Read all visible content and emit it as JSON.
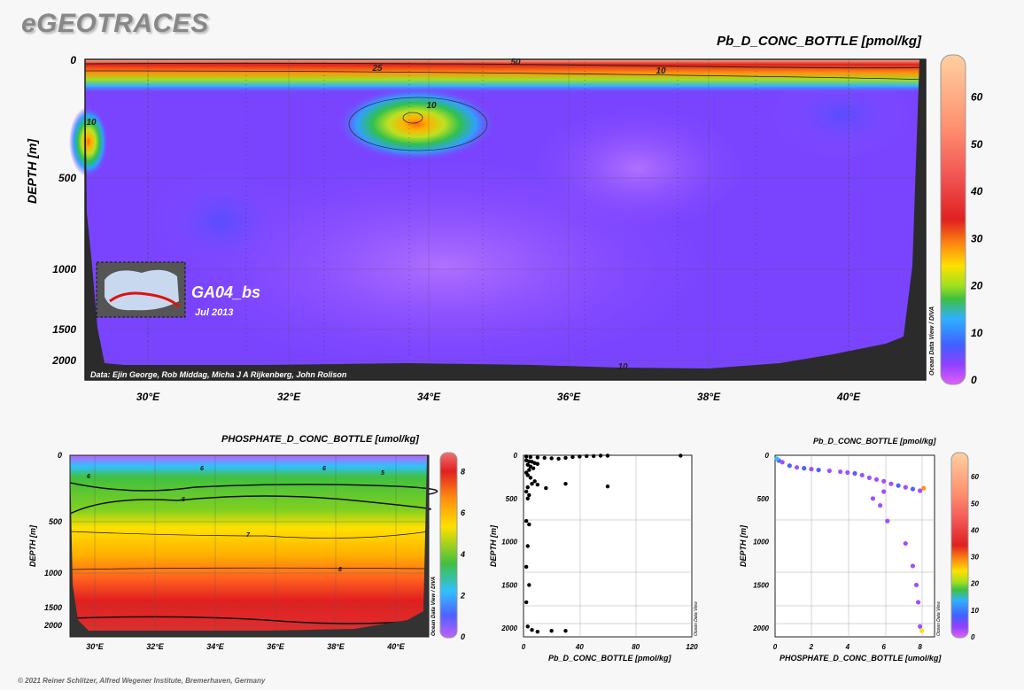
{
  "header": {
    "logo": "eGEOTRACES",
    "footer": "© 2021 Reiner Schlitzer, Alfred Wegener Institute, Bremerhaven, Germany"
  },
  "colors": {
    "palette": [
      "#e060ff",
      "#9040ff",
      "#5060ff",
      "#30a0ff",
      "#30d0c0",
      "#40c040",
      "#a0e020",
      "#ffe000",
      "#ffb000",
      "#ff6020",
      "#e02020",
      "#f06060",
      "#ffa080",
      "#ffd0a0"
    ]
  },
  "chart_data": [
    {
      "id": "main",
      "type": "heatmap",
      "title": "Pb_D_CONC_BOTTLE [pmol/kg]",
      "ylabel": "DEPTH [m]",
      "x_ticks": [
        "30°E",
        "32°E",
        "34°E",
        "36°E",
        "38°E",
        "40°E"
      ],
      "y_ticks": [
        "0",
        "500",
        "1000",
        "1500",
        "2000"
      ],
      "colorbar_ticks": [
        "0",
        "10",
        "20",
        "30",
        "40",
        "50",
        "60"
      ],
      "colorbar_range": [
        0,
        68
      ],
      "contour_labels": [
        "50",
        "25",
        "10",
        "10",
        "10",
        "10"
      ],
      "section": "GA04_bs",
      "date": "Jul 2013",
      "credit": "Data: Ejin George, Rob Middag, Micha J A Rijkenberg, John Rolison",
      "watermark": "Ocean Data View / DIVA"
    },
    {
      "id": "phosphate",
      "type": "heatmap",
      "title": "PHOSPHATE_D_CONC_BOTTLE [umol/kg]",
      "ylabel": "DEPTH [m]",
      "x_ticks": [
        "30°E",
        "32°E",
        "34°E",
        "36°E",
        "38°E",
        "40°E"
      ],
      "y_ticks": [
        "0",
        "500",
        "1000",
        "1500",
        "2000"
      ],
      "colorbar_ticks": [
        "0",
        "2",
        "4",
        "6",
        "8"
      ],
      "colorbar_range": [
        0,
        8.8
      ],
      "contour_labels": [
        "6",
        "6",
        "6",
        "5",
        "6",
        "7",
        "8"
      ],
      "watermark": "Ocean Data View / DIVA"
    },
    {
      "id": "scatter1",
      "type": "scatter",
      "xlabel": "Pb_D_CONC_BOTTLE [pmol/kg]",
      "ylabel": "DEPTH [m]",
      "x_ticks": [
        "0",
        "40",
        "80",
        "120"
      ],
      "y_ticks": [
        "0",
        "500",
        "1000",
        "1500",
        "2000"
      ],
      "xlim": [
        0,
        120
      ],
      "ylim": [
        0,
        2100
      ],
      "watermark": "Ocean Data View",
      "points": [
        [
          2,
          15
        ],
        [
          5,
          20
        ],
        [
          10,
          25
        ],
        [
          15,
          30
        ],
        [
          20,
          35
        ],
        [
          25,
          40
        ],
        [
          30,
          30
        ],
        [
          35,
          20
        ],
        [
          40,
          15
        ],
        [
          45,
          10
        ],
        [
          50,
          10
        ],
        [
          55,
          5
        ],
        [
          60,
          5
        ],
        [
          112,
          5
        ],
        [
          2,
          60
        ],
        [
          4,
          70
        ],
        [
          6,
          75
        ],
        [
          8,
          90
        ],
        [
          10,
          100
        ],
        [
          3,
          110
        ],
        [
          5,
          130
        ],
        [
          7,
          150
        ],
        [
          4,
          170
        ],
        [
          2,
          200
        ],
        [
          3,
          230
        ],
        [
          5,
          260
        ],
        [
          8,
          300
        ],
        [
          10,
          340
        ],
        [
          3,
          370
        ],
        [
          16,
          380
        ],
        [
          6,
          330
        ],
        [
          30,
          330
        ],
        [
          60,
          360
        ],
        [
          2,
          420
        ],
        [
          4,
          460
        ],
        [
          3,
          500
        ],
        [
          2,
          760
        ],
        [
          4,
          800
        ],
        [
          3,
          1050
        ],
        [
          2,
          1290
        ],
        [
          4,
          1500
        ],
        [
          2,
          1700
        ],
        [
          3,
          1980
        ],
        [
          6,
          2020
        ],
        [
          10,
          2040
        ],
        [
          20,
          2030
        ],
        [
          30,
          2030
        ]
      ]
    },
    {
      "id": "scatter2",
      "type": "scatter",
      "title": "Pb_D_CONC_BOTTLE [pmol/kg]",
      "xlabel": "PHOSPHATE_D_CONC_BOTTLE [umol/kg]",
      "ylabel": "DEPTH [m]",
      "x_ticks": [
        "0",
        "2",
        "4",
        "6",
        "8"
      ],
      "y_ticks": [
        "0",
        "500",
        "1000",
        "1500",
        "2000"
      ],
      "xlim": [
        0,
        8.8
      ],
      "ylim": [
        0,
        2100
      ],
      "colorbar_ticks": [
        "0",
        "10",
        "20",
        "30",
        "40",
        "50",
        "60"
      ],
      "colorbar_range": [
        0,
        68
      ],
      "watermark": "Ocean Data View",
      "points": [
        [
          0.2,
          60,
          8
        ],
        [
          0.4,
          80,
          5
        ],
        [
          0.8,
          120,
          6
        ],
        [
          1.2,
          140,
          5
        ],
        [
          1.6,
          150,
          6
        ],
        [
          2.0,
          160,
          5
        ],
        [
          2.4,
          170,
          6
        ],
        [
          3.0,
          180,
          5
        ],
        [
          3.6,
          190,
          4
        ],
        [
          4.0,
          200,
          5
        ],
        [
          4.4,
          210,
          6
        ],
        [
          4.8,
          230,
          5
        ],
        [
          5.2,
          260,
          4
        ],
        [
          5.6,
          280,
          5
        ],
        [
          6.0,
          300,
          4
        ],
        [
          6.4,
          330,
          5
        ],
        [
          6.8,
          350,
          6
        ],
        [
          7.2,
          370,
          5
        ],
        [
          7.6,
          390,
          6
        ],
        [
          8.0,
          410,
          5
        ],
        [
          8.2,
          380,
          45
        ],
        [
          0.1,
          40,
          15
        ],
        [
          6.0,
          420,
          4
        ],
        [
          5.4,
          500,
          4
        ],
        [
          5.8,
          580,
          5
        ],
        [
          6.2,
          760,
          4
        ],
        [
          7.2,
          1020,
          5
        ],
        [
          7.6,
          1280,
          5
        ],
        [
          7.8,
          1500,
          4
        ],
        [
          7.9,
          1700,
          5
        ],
        [
          8.0,
          1980,
          4
        ],
        [
          8.1,
          2030,
          30
        ]
      ]
    }
  ]
}
